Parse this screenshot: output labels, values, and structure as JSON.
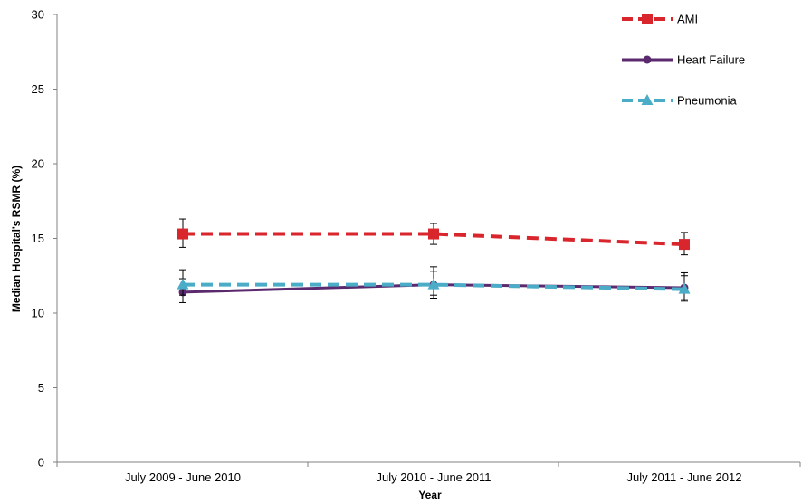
{
  "chart_data": {
    "type": "line",
    "title": "",
    "xlabel": "Year",
    "ylabel": "Median Hospital's RSMR (%)",
    "categories": [
      "July 2009 - June 2010",
      "July 2010 - June 2011",
      "July 2011 - June 2012"
    ],
    "ylim": [
      0,
      30
    ],
    "yticks": [
      0,
      5,
      10,
      15,
      20,
      25,
      30
    ],
    "grid": false,
    "legend_position": "top-right",
    "series": [
      {
        "name": "AMI",
        "values": [
          15.3,
          15.3,
          14.6
        ],
        "error_low": [
          14.4,
          14.6,
          13.9
        ],
        "error_high": [
          16.3,
          16.0,
          15.4
        ],
        "color": "#d9262c",
        "line_style": "dashed",
        "marker": "square"
      },
      {
        "name": "Heart Failure",
        "values": [
          11.4,
          11.9,
          11.7
        ],
        "error_low": [
          10.7,
          11.0,
          10.8
        ],
        "error_high": [
          12.3,
          13.1,
          12.7
        ],
        "color": "#5b2a6e",
        "line_style": "solid",
        "marker": "circle"
      },
      {
        "name": "Pneumonia",
        "values": [
          11.9,
          11.9,
          11.6
        ],
        "error_low": [
          11.2,
          11.2,
          10.9
        ],
        "error_high": [
          12.9,
          12.8,
          12.5
        ],
        "color": "#4aacc6",
        "line_style": "dashed",
        "marker": "triangle"
      }
    ]
  }
}
